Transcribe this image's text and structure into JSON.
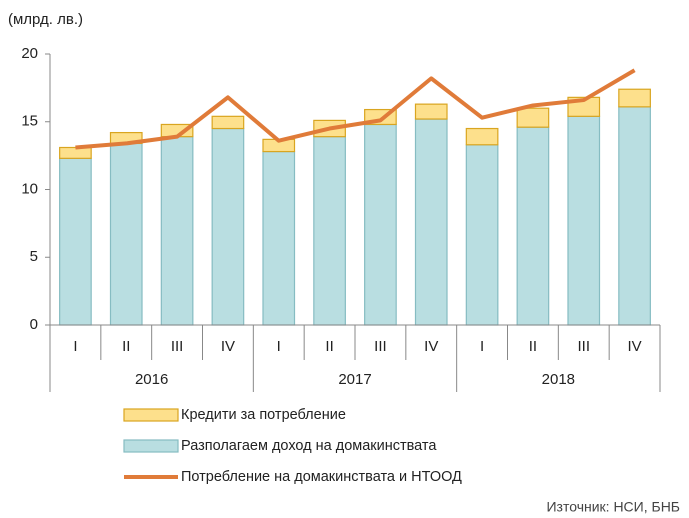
{
  "chart_data": {
    "type": "bar",
    "y_label": "(млрд. лв.)",
    "source": "Източник: НСИ, БНБ",
    "categories": [
      "I",
      "II",
      "III",
      "IV",
      "I",
      "II",
      "III",
      "IV",
      "I",
      "II",
      "III",
      "IV"
    ],
    "years": [
      "2016",
      "2017",
      "2018"
    ],
    "series": [
      {
        "name": "Кредити за потребление",
        "type": "bar",
        "color": "#FDE08C",
        "edge": "#D9A520",
        "values": [
          0.8,
          0.8,
          0.9,
          0.9,
          0.9,
          1.2,
          1.1,
          1.1,
          1.2,
          1.4,
          1.4,
          1.3
        ]
      },
      {
        "name": "Разполагаем доход на домакинствата",
        "type": "bar",
        "color": "#B9DEE1",
        "edge": "#86BCC2",
        "values": [
          12.3,
          13.4,
          13.9,
          14.5,
          12.8,
          13.9,
          14.8,
          15.2,
          13.3,
          14.6,
          15.4,
          16.1
        ]
      },
      {
        "name": "Потребление на домакинствата и НТООД",
        "type": "line",
        "color": "#E07B39",
        "values": [
          13.1,
          13.4,
          13.9,
          16.8,
          13.6,
          14.5,
          15.1,
          18.2,
          15.3,
          16.2,
          16.6,
          18.8
        ]
      }
    ],
    "ylim": [
      0,
      20
    ],
    "yticks": [
      0,
      5,
      10,
      15,
      20
    ]
  }
}
